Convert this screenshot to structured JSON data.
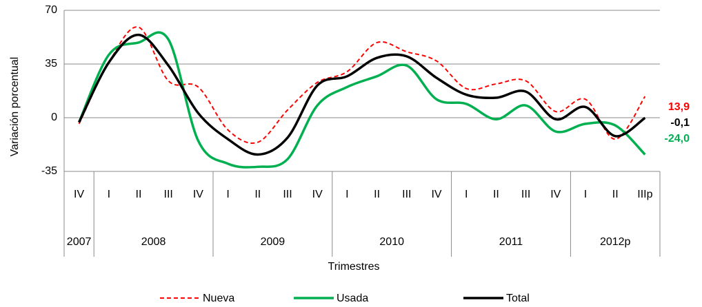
{
  "chart_data": {
    "type": "line",
    "y_label": "Variación porcentual",
    "x_label": "Trimestres",
    "categories": [
      "IV",
      "I",
      "II",
      "III",
      "IV",
      "I",
      "II",
      "III",
      "IV",
      "I",
      "II",
      "III",
      "IV",
      "I",
      "II",
      "III",
      "IV",
      "I",
      "II",
      "IIIp"
    ],
    "groups": [
      "2007",
      "2008",
      "2009",
      "2010",
      "2011",
      "2012p"
    ],
    "ylim": [
      -35,
      70
    ],
    "yticks": [
      -35,
      0,
      35,
      70
    ],
    "grid": true,
    "legend": "bottom",
    "series": [
      {
        "name": "Nueva",
        "color": "#ff0000",
        "dash": true,
        "values": [
          -4,
          36,
          59,
          24,
          20,
          -8,
          -16,
          5,
          23,
          30,
          49,
          43,
          37,
          19,
          22,
          24,
          4,
          12,
          -14,
          13.9
        ],
        "value_labels": [
          null,
          null,
          null,
          null,
          null,
          null,
          null,
          null,
          null,
          null,
          null,
          null,
          null,
          null,
          null,
          null,
          null,
          null,
          null,
          "13,9"
        ]
      },
      {
        "name": "Usada",
        "color": "#00b050",
        "dash": false,
        "values": [
          -3,
          41,
          49,
          51,
          -15,
          -30,
          -32,
          -27,
          8,
          20,
          27,
          34,
          12,
          9,
          -1,
          8,
          -9,
          -4,
          -5,
          -24.0
        ],
        "value_labels": [
          null,
          null,
          null,
          null,
          null,
          null,
          null,
          null,
          null,
          null,
          null,
          null,
          null,
          null,
          null,
          null,
          null,
          null,
          null,
          "-24,0"
        ]
      },
      {
        "name": "Total",
        "color": "#000000",
        "dash": false,
        "values": [
          -3,
          36,
          54,
          34,
          3,
          -14,
          -24,
          -13,
          21,
          27,
          39,
          40,
          26,
          15,
          13,
          17,
          -1,
          7,
          -12,
          -0.1
        ],
        "value_labels": [
          null,
          null,
          null,
          null,
          null,
          null,
          null,
          null,
          null,
          null,
          null,
          null,
          null,
          null,
          null,
          null,
          null,
          null,
          null,
          "-0,1"
        ]
      }
    ]
  }
}
